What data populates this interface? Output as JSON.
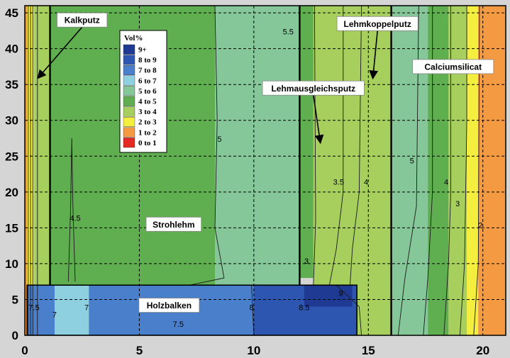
{
  "chart_data": {
    "type": "heatmap",
    "xlim": [
      0,
      21
    ],
    "ylim": [
      0,
      46
    ],
    "x_ticks": [
      "0",
      "5",
      "10",
      "15",
      "20"
    ],
    "y_ticks": [
      "0",
      "5",
      "10",
      "15",
      "20",
      "25",
      "30",
      "35",
      "40",
      "45"
    ],
    "grid": true,
    "legend": {
      "title": "Vol%",
      "placement": "top-center",
      "entries": [
        {
          "label": "9+",
          "color": "#1f3a93"
        },
        {
          "label": "8 to 9",
          "color": "#2d56b0"
        },
        {
          "label": "7 to 8",
          "color": "#4a7fcc"
        },
        {
          "label": "6 to 7",
          "color": "#8fd0e0"
        },
        {
          "label": "5 to 6",
          "color": "#86c79a"
        },
        {
          "label": "4 to 5",
          "color": "#5fae4f"
        },
        {
          "label": "3 to 4",
          "color": "#a6cf5e"
        },
        {
          "label": "2 to 3",
          "color": "#f4ee3e"
        },
        {
          "label": "1 to 2",
          "color": "#f39a42"
        },
        {
          "label": "0 to 1",
          "color": "#e52a23"
        }
      ]
    },
    "regions": [
      {
        "x": [
          0,
          0.1
        ],
        "y": [
          0,
          46
        ],
        "class": "1 to 2"
      },
      {
        "x": [
          0.1,
          0.4
        ],
        "y": [
          0,
          46
        ],
        "class": "2 to 3"
      },
      {
        "x": [
          0.4,
          1.1
        ],
        "y": [
          0,
          46
        ],
        "class": "3 to 4"
      },
      {
        "x": [
          1.1,
          8.3
        ],
        "y": [
          0,
          46
        ],
        "class": "4 to 5"
      },
      {
        "x": [
          8.3,
          12.0
        ],
        "y": [
          0,
          46
        ],
        "class": "5 to 6"
      },
      {
        "x": [
          12.0,
          12.6
        ],
        "y": [
          8,
          46
        ],
        "class": "4 to 5"
      },
      {
        "x": [
          12.6,
          15.0
        ],
        "y": [
          0,
          46
        ],
        "class": "3 to 4"
      },
      {
        "x": [
          15.0,
          16.0
        ],
        "y": [
          0,
          46
        ],
        "class": "3 to 4"
      },
      {
        "x": [
          16.0,
          17.6
        ],
        "y": [
          0,
          46
        ],
        "class": "5 to 6"
      },
      {
        "x": [
          17.6,
          18.5
        ],
        "y": [
          0,
          46
        ],
        "class": "4 to 5"
      },
      {
        "x": [
          18.5,
          19.3
        ],
        "y": [
          0,
          46
        ],
        "class": "3 to 4"
      },
      {
        "x": [
          19.3,
          19.8
        ],
        "y": [
          0,
          46
        ],
        "class": "2 to 3"
      },
      {
        "x": [
          19.8,
          21.0
        ],
        "y": [
          0,
          46
        ],
        "class": "1 to 2"
      },
      {
        "x": [
          0.1,
          1.3
        ],
        "y": [
          0,
          7
        ],
        "class": "7 to 8"
      },
      {
        "x": [
          1.3,
          2.8
        ],
        "y": [
          0,
          7
        ],
        "class": "6 to 7"
      },
      {
        "x": [
          2.8,
          10.0
        ],
        "y": [
          0,
          7
        ],
        "class": "7 to 8"
      },
      {
        "x": [
          10.0,
          14.5
        ],
        "y": [
          0,
          7
        ],
        "class": "8 to 9"
      },
      {
        "x": [
          12.2,
          14.3
        ],
        "y": [
          4,
          7
        ],
        "class": "9+"
      }
    ],
    "contour_labels": [
      {
        "text": "5.5",
        "x": 11.5,
        "y": 42
      },
      {
        "text": "5",
        "x": 8.5,
        "y": 27
      },
      {
        "text": "4.5",
        "x": 2.2,
        "y": 16
      },
      {
        "text": "3.5",
        "x": 13.7,
        "y": 21
      },
      {
        "text": "4",
        "x": 14.9,
        "y": 21
      },
      {
        "text": "5",
        "x": 16.9,
        "y": 24
      },
      {
        "text": "4",
        "x": 18.4,
        "y": 21
      },
      {
        "text": "3",
        "x": 18.9,
        "y": 18
      },
      {
        "text": "2",
        "x": 19.9,
        "y": 15
      },
      {
        "text": "3",
        "x": 12.3,
        "y": 10
      },
      {
        "text": "7.5",
        "x": 0.4,
        "y": 3.5
      },
      {
        "text": "7",
        "x": 1.3,
        "y": 2.5
      },
      {
        "text": "7",
        "x": 2.7,
        "y": 3.5
      },
      {
        "text": "7.5",
        "x": 6.7,
        "y": 1.2
      },
      {
        "text": "8",
        "x": 9.9,
        "y": 3.5
      },
      {
        "text": "8.5",
        "x": 12.2,
        "y": 3.5
      },
      {
        "text": "9",
        "x": 13.8,
        "y": 5.5
      }
    ],
    "annotations": [
      {
        "text": "Kalkputz",
        "x": 2.5,
        "y": 44,
        "arrow_to": [
          0.6,
          36
        ]
      },
      {
        "text": "Lehmkoppelputz",
        "x": 15.4,
        "y": 43.5,
        "arrow_to": [
          15.2,
          36
        ]
      },
      {
        "text": "Calciumsilicat",
        "x": 18.7,
        "y": 37.5
      },
      {
        "text": "Lehmausgleichsputz",
        "x": 12.6,
        "y": 34.5,
        "arrow_to": [
          12.9,
          27
        ]
      },
      {
        "text": "Strohlehm",
        "x": 6.5,
        "y": 15.5
      },
      {
        "text": "Holzbalken",
        "x": 6.3,
        "y": 4.2
      }
    ]
  }
}
